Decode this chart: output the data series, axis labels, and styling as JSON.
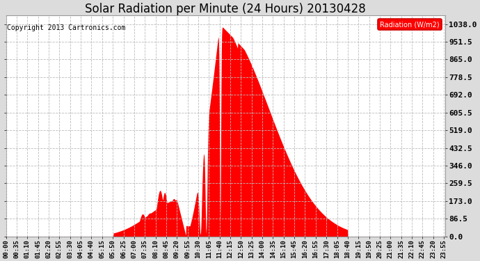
{
  "title": "Solar Radiation per Minute (24 Hours) 20130428",
  "copyright_text": "Copyright 2013 Cartronics.com",
  "legend_label": "Radiation (W/m2)",
  "fill_color": "#FF0000",
  "background_color": "#DCDCDC",
  "plot_bg_color": "#FFFFFF",
  "grid_color": "#AAAAAA",
  "yticks": [
    0.0,
    86.5,
    173.0,
    259.5,
    346.0,
    432.5,
    519.0,
    605.5,
    692.0,
    778.5,
    865.0,
    951.5,
    1038.0
  ],
  "ymax": 1038.0,
  "ymin": 0.0,
  "title_fontsize": 12,
  "copyright_fontsize": 7,
  "tick_fontsize": 6.5,
  "ytick_fontsize": 8
}
